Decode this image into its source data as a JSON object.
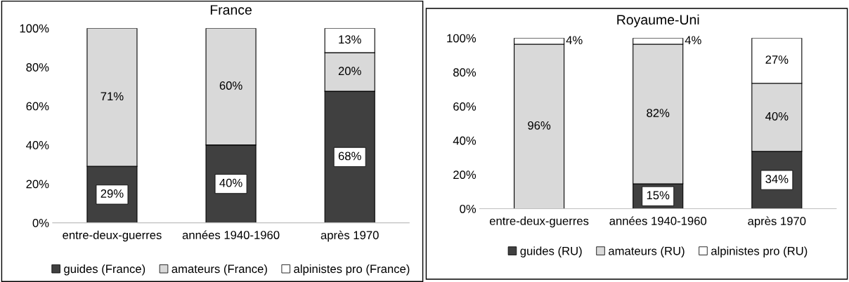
{
  "chart_data": [
    {
      "type": "bar",
      "title": "France",
      "stacked": true,
      "legend": "bottom",
      "categories": [
        "entre-deux-guerres",
        "années 1940-1960",
        "après 1970"
      ],
      "ylim": [
        0,
        100
      ],
      "yticks": [
        {
          "value": 0,
          "label": "0%"
        },
        {
          "value": 20,
          "label": "20%"
        },
        {
          "value": 40,
          "label": "40%"
        },
        {
          "value": 60,
          "label": "60%"
        },
        {
          "value": 80,
          "label": "80%"
        },
        {
          "value": 100,
          "label": "100%"
        }
      ],
      "series": [
        {
          "name": "guides (France)",
          "color": "#404040",
          "values": [
            29,
            40,
            67.6
          ],
          "value_labels": [
            "29%",
            "40%",
            "68%"
          ]
        },
        {
          "name": "amateurs (France)",
          "color": "#d9d9d9",
          "values": [
            71,
            60,
            19.8
          ],
          "value_labels": [
            "71%",
            "60%",
            "20%"
          ]
        },
        {
          "name": "alpinistes pro (France)",
          "color": "#ffffff",
          "values": [
            null,
            null,
            12.6
          ],
          "value_labels": [
            null,
            null,
            "13%"
          ]
        }
      ]
    },
    {
      "type": "bar",
      "title": "Royaume-Uni",
      "stacked": true,
      "legend": "bottom",
      "categories": [
        "entre-deux-guerres",
        "années 1940-1960",
        "après 1970"
      ],
      "ylim": [
        0,
        100
      ],
      "yticks": [
        {
          "value": 0,
          "label": "0%"
        },
        {
          "value": 20,
          "label": "20%"
        },
        {
          "value": 40,
          "label": "40%"
        },
        {
          "value": 60,
          "label": "60%"
        },
        {
          "value": 80,
          "label": "80%"
        },
        {
          "value": 100,
          "label": "100%"
        }
      ],
      "series": [
        {
          "name": "guides (RU)",
          "color": "#404040",
          "values": [
            null,
            14.6,
            33.6
          ],
          "value_labels": [
            null,
            "15%",
            "34%"
          ]
        },
        {
          "name": "amateurs (RU)",
          "color": "#d9d9d9",
          "values": [
            96.4,
            81.8,
            39.9
          ],
          "value_labels": [
            "96%",
            "82%",
            "40%"
          ]
        },
        {
          "name": "alpinistes pro (RU)",
          "color": "#ffffff",
          "values": [
            3.6,
            3.6,
            26.5
          ],
          "value_labels": [
            "4%",
            "4%",
            "27%"
          ]
        }
      ]
    }
  ]
}
